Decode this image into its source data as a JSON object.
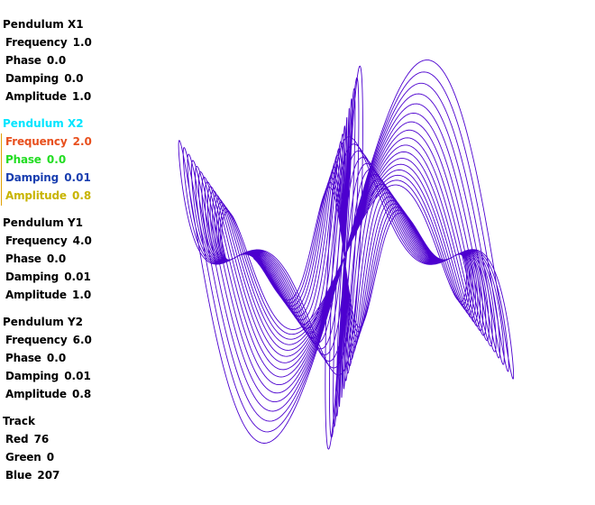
{
  "groups": [
    {
      "title": "Pendulum X1",
      "title_color": "#000000",
      "selected": false,
      "params": [
        {
          "label": "Frequency",
          "value": "1.0",
          "color": "#000000"
        },
        {
          "label": "Phase",
          "value": "0.0",
          "color": "#000000"
        },
        {
          "label": "Damping",
          "value": "0.0",
          "color": "#000000"
        },
        {
          "label": "Amplitude",
          "value": "1.0",
          "color": "#000000"
        }
      ]
    },
    {
      "title": "Pendulum X2",
      "title_color": "#00e5ff",
      "selected": true,
      "params": [
        {
          "label": "Frequency",
          "value": "2.0",
          "color": "#e8501e"
        },
        {
          "label": "Phase",
          "value": "0.0",
          "color": "#22dd22"
        },
        {
          "label": "Damping",
          "value": "0.01",
          "color": "#1a3fb0"
        },
        {
          "label": "Amplitude",
          "value": "0.8",
          "color": "#c8b400"
        }
      ]
    },
    {
      "title": "Pendulum Y1",
      "title_color": "#000000",
      "selected": false,
      "params": [
        {
          "label": "Frequency",
          "value": "4.0",
          "color": "#000000"
        },
        {
          "label": "Phase",
          "value": "0.0",
          "color": "#000000"
        },
        {
          "label": "Damping",
          "value": "0.01",
          "color": "#000000"
        },
        {
          "label": "Amplitude",
          "value": "1.0",
          "color": "#000000"
        }
      ]
    },
    {
      "title": "Pendulum Y2",
      "title_color": "#000000",
      "selected": false,
      "params": [
        {
          "label": "Frequency",
          "value": "6.0",
          "color": "#000000"
        },
        {
          "label": "Phase",
          "value": "0.0",
          "color": "#000000"
        },
        {
          "label": "Damping",
          "value": "0.01",
          "color": "#000000"
        },
        {
          "label": "Amplitude",
          "value": "0.8",
          "color": "#000000"
        }
      ]
    },
    {
      "title": "Track",
      "title_color": "#000000",
      "selected": false,
      "params": [
        {
          "label": "Red",
          "value": "76",
          "color": "#000000"
        },
        {
          "label": "Green",
          "value": "0",
          "color": "#000000"
        },
        {
          "label": "Blue",
          "value": "207",
          "color": "#000000"
        }
      ]
    }
  ],
  "trace_color": "#4c00cf"
}
